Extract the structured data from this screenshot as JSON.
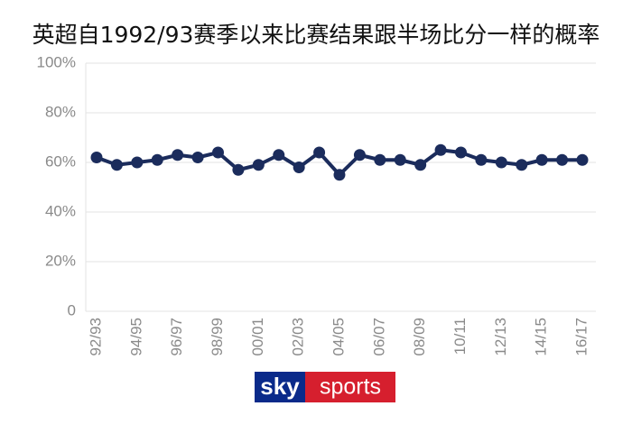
{
  "chart_data": {
    "type": "line",
    "title": "英超自1992/93赛季以来比赛结果跟半场比分一样的概率",
    "categories": [
      "92/93",
      null,
      "94/95",
      null,
      "96/97",
      null,
      "98/99",
      null,
      "00/01",
      null,
      "02/03",
      null,
      "04/05",
      null,
      "06/07",
      null,
      "08/09",
      null,
      "10/11",
      null,
      "12/13",
      null,
      "14/15",
      null,
      "16/17"
    ],
    "values": [
      62,
      59,
      60,
      61,
      63,
      62,
      64,
      57,
      59,
      63,
      58,
      64,
      55,
      63,
      61,
      61,
      59,
      65,
      64,
      61,
      60,
      59,
      61,
      61,
      61
    ],
    "color": "#1b2c5c",
    "ylim": [
      0,
      100
    ],
    "yticks": [
      0,
      {
        "value": 20,
        "label": "20%"
      },
      {
        "value": 40,
        "label": "40%"
      },
      {
        "value": 60,
        "label": "60%"
      },
      {
        "value": 80,
        "label": "80%"
      },
      {
        "value": 100,
        "label": "100%"
      }
    ],
    "grid": true
  },
  "logo": {
    "left": "sky",
    "right": "sports"
  }
}
